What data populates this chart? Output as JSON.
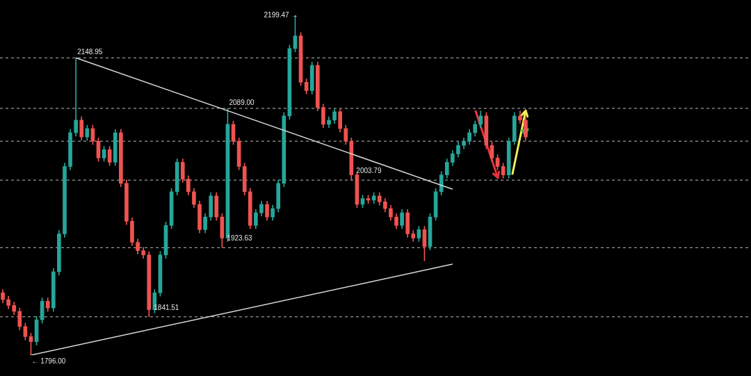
{
  "chart_data": {
    "type": "candlestick",
    "categories": [
      null,
      null,
      null,
      null,
      null,
      null,
      null,
      null,
      null,
      null,
      null,
      null,
      null,
      null,
      null,
      null,
      null,
      null,
      null,
      null,
      null,
      null,
      null,
      null,
      null,
      null,
      null,
      null,
      null,
      null,
      null,
      null,
      null,
      null,
      null,
      null,
      null,
      null,
      null,
      null,
      null,
      null,
      null,
      null,
      null,
      null,
      null,
      null,
      null,
      null,
      null,
      null,
      null,
      null,
      null,
      null,
      null,
      null,
      null,
      null,
      null,
      null,
      null,
      null,
      null,
      null,
      null,
      null,
      null,
      null,
      null,
      null,
      null,
      null,
      null,
      null,
      null,
      null,
      null,
      null,
      null,
      null,
      null,
      null,
      null,
      null,
      null,
      null,
      null,
      null,
      null,
      null,
      null,
      null
    ],
    "ohlc": [
      [
        1870,
        1874,
        1858,
        1862
      ],
      [
        1862,
        1866,
        1851,
        1855
      ],
      [
        1855,
        1859,
        1844,
        1848
      ],
      [
        1848,
        1852,
        1826,
        1830
      ],
      [
        1830,
        1834,
        1814,
        1818
      ],
      [
        1818,
        1822,
        1796.0,
        1812
      ],
      [
        1812,
        1842,
        1808,
        1838
      ],
      [
        1838,
        1864,
        1834,
        1860
      ],
      [
        1860,
        1864,
        1848,
        1852
      ],
      [
        1852,
        1899,
        1848,
        1895
      ],
      [
        1895,
        1944,
        1891,
        1940
      ],
      [
        1940,
        2024,
        1936,
        2020
      ],
      [
        2020,
        2064,
        2016,
        2060
      ],
      [
        2060,
        2148.95,
        2056,
        2075
      ],
      [
        2075,
        2079,
        2051,
        2055
      ],
      [
        2055,
        2069,
        2051,
        2065
      ],
      [
        2065,
        2069,
        2046,
        2050
      ],
      [
        2050,
        2054,
        2026,
        2030
      ],
      [
        2030,
        2044,
        2026,
        2040
      ],
      [
        2040,
        2044,
        2021,
        2025
      ],
      [
        2025,
        2064,
        2021,
        2060
      ],
      [
        2060,
        2064,
        1996,
        2000
      ],
      [
        2000,
        2004,
        1951,
        1955
      ],
      [
        1955,
        1959,
        1926,
        1930
      ],
      [
        1930,
        1934,
        1916,
        1920
      ],
      [
        1920,
        1924,
        1911,
        1915
      ],
      [
        1915,
        1919,
        1841.51,
        1850
      ],
      [
        1850,
        1874,
        1846,
        1870
      ],
      [
        1870,
        1919,
        1866,
        1915
      ],
      [
        1915,
        1954,
        1911,
        1950
      ],
      [
        1950,
        1994,
        1946,
        1990
      ],
      [
        1990,
        2029,
        1986,
        2025
      ],
      [
        2025,
        2029,
        2001,
        2005
      ],
      [
        2005,
        2009,
        1986,
        1990
      ],
      [
        1990,
        1994,
        1971,
        1975
      ],
      [
        1975,
        1979,
        1941,
        1945
      ],
      [
        1945,
        1964,
        1941,
        1960
      ],
      [
        1960,
        1989,
        1956,
        1985
      ],
      [
        1985,
        1989,
        1956,
        1960
      ],
      [
        1960,
        1964,
        1923.63,
        1935
      ],
      [
        1935,
        2089.0,
        1931,
        2070
      ],
      [
        2070,
        2074,
        2046,
        2050
      ],
      [
        2050,
        2054,
        2016,
        2020
      ],
      [
        2020,
        2024,
        1986,
        1990
      ],
      [
        1990,
        1994,
        1946,
        1950
      ],
      [
        1950,
        1969,
        1946,
        1965
      ],
      [
        1965,
        1979,
        1961,
        1975
      ],
      [
        1975,
        1979,
        1956,
        1960
      ],
      [
        1960,
        1974,
        1956,
        1970
      ],
      [
        1970,
        2004,
        1966,
        2000
      ],
      [
        2000,
        2084,
        1996,
        2080
      ],
      [
        2080,
        2164,
        2076,
        2160
      ],
      [
        2160,
        2199.47,
        2156,
        2175
      ],
      [
        2175,
        2179,
        2116,
        2120
      ],
      [
        2120,
        2124,
        2106,
        2110
      ],
      [
        2110,
        2144,
        2106,
        2140
      ],
      [
        2140,
        2144,
        2086,
        2090
      ],
      [
        2090,
        2094,
        2066,
        2070
      ],
      [
        2070,
        2079,
        2066,
        2075
      ],
      [
        2075,
        2088,
        2071,
        2085
      ],
      [
        2085,
        2088,
        2061,
        2065
      ],
      [
        2065,
        2069,
        2046,
        2050
      ],
      [
        2050,
        2054,
        2003.79,
        2010
      ],
      [
        2010,
        2012,
        1971,
        1975
      ],
      [
        1975,
        1986,
        1971,
        1982
      ],
      [
        1982,
        1986,
        1976,
        1980
      ],
      [
        1980,
        1989,
        1976,
        1985
      ],
      [
        1985,
        1989,
        1974,
        1978
      ],
      [
        1978,
        1982,
        1966,
        1970
      ],
      [
        1970,
        1974,
        1956,
        1960
      ],
      [
        1960,
        1964,
        1946,
        1950
      ],
      [
        1950,
        1969,
        1946,
        1965
      ],
      [
        1965,
        1969,
        1936,
        1940
      ],
      [
        1940,
        1944,
        1931,
        1935
      ],
      [
        1935,
        1949,
        1931,
        1945
      ],
      [
        1945,
        1949,
        1908,
        1925
      ],
      [
        1925,
        1964,
        1921,
        1960
      ],
      [
        1960,
        1994,
        1956,
        1990
      ],
      [
        1990,
        2014,
        1986,
        2010
      ],
      [
        2010,
        2029,
        2006,
        2025
      ],
      [
        2025,
        2039,
        2021,
        2035
      ],
      [
        2035,
        2049,
        2031,
        2045
      ],
      [
        2045,
        2054,
        2041,
        2050
      ],
      [
        2050,
        2064,
        2046,
        2060
      ],
      [
        2060,
        2074,
        2056,
        2070
      ],
      [
        2070,
        2086,
        2066,
        2080
      ],
      [
        2080,
        2084,
        2041,
        2045
      ],
      [
        2045,
        2049,
        2026,
        2030
      ],
      [
        2030,
        2034,
        2016,
        2020
      ],
      [
        2020,
        2024,
        2006,
        2010
      ],
      [
        2010,
        2054,
        2006,
        2050
      ],
      [
        2050,
        2084,
        2046,
        2080
      ],
      [
        2080,
        2086,
        2071,
        2075
      ],
      [
        2075,
        2079,
        2051,
        2055
      ]
    ],
    "series": [
      {
        "type": "line",
        "color": "#d9d9d9",
        "values": [
          null,
          null,
          null,
          null,
          null,
          null,
          null,
          null,
          null,
          null,
          null,
          null,
          null,
          2149,
          null,
          null,
          null,
          null,
          null,
          null,
          null,
          null,
          null,
          null,
          null,
          null,
          null,
          null,
          null,
          null,
          null,
          null,
          null,
          null,
          null,
          null,
          null,
          null,
          null,
          null,
          null,
          null,
          null,
          null,
          null,
          null,
          null,
          null,
          null,
          null,
          null,
          null,
          null,
          null,
          null,
          null,
          null,
          null,
          null,
          null,
          null,
          null,
          null,
          null,
          null,
          null,
          null,
          null,
          null,
          null,
          null,
          null,
          null,
          null,
          null,
          null,
          null,
          null,
          null,
          null,
          1993,
          null,
          null,
          null,
          null,
          null,
          null,
          null,
          null,
          null,
          null,
          null,
          null,
          null
        ]
      },
      {
        "type": "line",
        "color": "#d9d9d9",
        "values": [
          null,
          null,
          null,
          null,
          null,
          1796.0,
          null,
          null,
          null,
          null,
          null,
          null,
          null,
          null,
          null,
          null,
          null,
          null,
          null,
          null,
          null,
          null,
          null,
          null,
          null,
          null,
          null,
          null,
          null,
          null,
          null,
          null,
          null,
          null,
          null,
          null,
          null,
          null,
          null,
          null,
          null,
          null,
          null,
          null,
          null,
          null,
          null,
          null,
          null,
          null,
          null,
          null,
          null,
          null,
          null,
          null,
          null,
          null,
          null,
          null,
          null,
          null,
          null,
          null,
          null,
          null,
          null,
          null,
          null,
          null,
          null,
          null,
          null,
          null,
          null,
          null,
          null,
          null,
          null,
          null,
          1904,
          null,
          null,
          null,
          null,
          null,
          null,
          null,
          null,
          null,
          null,
          null,
          null,
          null
        ]
      }
    ],
    "ref_lines": [
      {
        "axis": "y",
        "value": 2148.95,
        "color": "#bfbfbf",
        "line_style": "dashed"
      },
      {
        "axis": "y",
        "value": 2089.0,
        "color": "#bfbfbf",
        "line_style": "dashed"
      },
      {
        "axis": "y",
        "value": 2050,
        "color": "#bfbfbf",
        "line_style": "dashed"
      },
      {
        "axis": "y",
        "value": 2003.79,
        "color": "#bfbfbf",
        "line_style": "dashed"
      },
      {
        "axis": "y",
        "value": 1923.63,
        "color": "#bfbfbf",
        "line_style": "dashed"
      },
      {
        "axis": "y",
        "value": 1841.51,
        "color": "#bfbfbf",
        "line_style": "dashed"
      }
    ],
    "annotations": [
      "2199.47 →",
      {
        "text": "2148.95",
        "y": 2148.95
      },
      {
        "text": "2089.00",
        "y": 2089.0
      },
      {
        "text": "2003.79",
        "y": 2003.79
      },
      {
        "text": "1923.63",
        "y": 1923.63
      },
      {
        "text": "1841.51",
        "y": 1841.51
      },
      {
        "text": "← 1796.00",
        "y": 1796.0
      }
    ],
    "legend": false
  }
}
